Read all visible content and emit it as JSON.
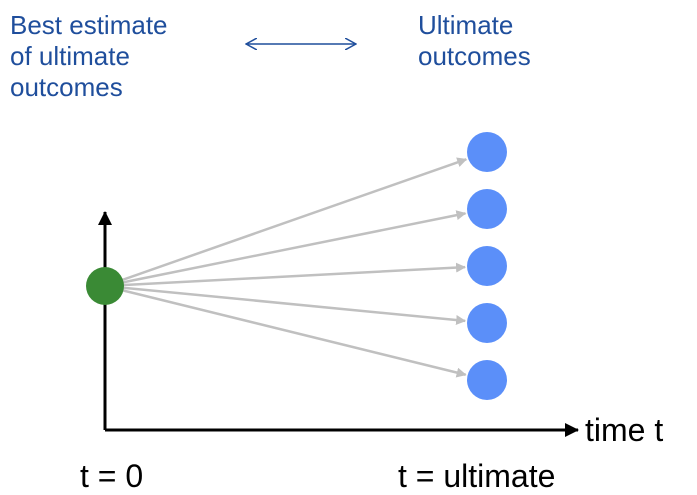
{
  "labels": {
    "best_estimate": [
      "Best estimate",
      "of ultimate",
      "outcomes"
    ],
    "ultimate_outcomes": [
      "Ultimate",
      "outcomes"
    ],
    "x_axis": "time t",
    "t_start": "t = 0",
    "t_end": "t = ultimate"
  },
  "outcome_count": 5,
  "colors": {
    "text_blue": "#1f4e9c",
    "start_node": "#3a8a35",
    "outcome_node": "#5b8ff9",
    "branch_arrow": "#c0c0c0",
    "axis": "#000000",
    "double_arrow": "#1f4e9c"
  }
}
